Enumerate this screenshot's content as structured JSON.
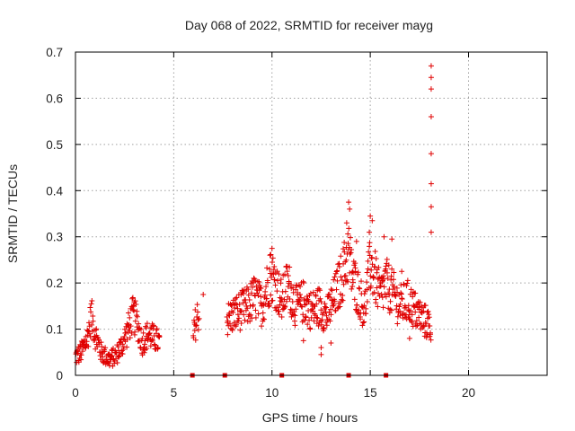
{
  "chart_data": {
    "type": "scatter",
    "title": "Day 068 of 2022, SRMTID for receiver mayg",
    "xlabel": "GPS time / hours",
    "ylabel": "SRMTID / TECUs",
    "xlim": [
      0,
      24
    ],
    "ylim": [
      0,
      0.7
    ],
    "xticks": [
      0,
      5,
      10,
      15,
      20
    ],
    "yticks": [
      0,
      0.1,
      0.2,
      0.3,
      0.4,
      0.5,
      0.6,
      0.7
    ],
    "xtick_labels": [
      "0",
      "5",
      "10",
      "15",
      "20"
    ],
    "ytick_labels": [
      "0",
      "0.1",
      "0.2",
      "0.3",
      "0.4",
      "0.5",
      "0.6",
      "0.7"
    ],
    "grid": true,
    "marker": "plus",
    "series": [
      {
        "name": "SRMTID",
        "color": "#e00000",
        "trend": [
          [
            0.0,
            0.04
          ],
          [
            0.3,
            0.05
          ],
          [
            0.6,
            0.08
          ],
          [
            0.8,
            0.13
          ],
          [
            1.0,
            0.09
          ],
          [
            1.3,
            0.05
          ],
          [
            1.7,
            0.035
          ],
          [
            2.0,
            0.04
          ],
          [
            2.3,
            0.06
          ],
          [
            2.6,
            0.09
          ],
          [
            2.9,
            0.13
          ],
          [
            3.1,
            0.12
          ],
          [
            3.4,
            0.07
          ],
          [
            3.7,
            0.09
          ],
          [
            4.0,
            0.08
          ],
          [
            4.3,
            0.07
          ],
          [
            6.0,
            0.08
          ],
          [
            6.1,
            0.11
          ],
          [
            6.3,
            0.14
          ],
          [
            7.7,
            0.12
          ],
          [
            8.0,
            0.13
          ],
          [
            8.4,
            0.14
          ],
          [
            8.8,
            0.15
          ],
          [
            9.1,
            0.17
          ],
          [
            9.5,
            0.15
          ],
          [
            9.8,
            0.2
          ],
          [
            10.0,
            0.22
          ],
          [
            10.5,
            0.16
          ],
          [
            10.8,
            0.2
          ],
          [
            11.2,
            0.15
          ],
          [
            11.6,
            0.16
          ],
          [
            12.0,
            0.14
          ],
          [
            12.4,
            0.15
          ],
          [
            12.8,
            0.13
          ],
          [
            13.2,
            0.17
          ],
          [
            13.6,
            0.22
          ],
          [
            13.9,
            0.27
          ],
          [
            14.1,
            0.21
          ],
          [
            14.4,
            0.18
          ],
          [
            14.7,
            0.14
          ],
          [
            15.0,
            0.24
          ],
          [
            15.2,
            0.22
          ],
          [
            15.5,
            0.17
          ],
          [
            15.8,
            0.2
          ],
          [
            16.1,
            0.18
          ],
          [
            16.5,
            0.15
          ],
          [
            16.9,
            0.16
          ],
          [
            17.3,
            0.14
          ],
          [
            17.7,
            0.12
          ],
          [
            18.0,
            0.11
          ],
          [
            18.1,
            0.1
          ]
        ],
        "tail_spike": [
          [
            18.1,
            0.67
          ],
          [
            18.1,
            0.645
          ],
          [
            18.1,
            0.62
          ],
          [
            18.1,
            0.56
          ],
          [
            18.1,
            0.48
          ],
          [
            18.1,
            0.415
          ],
          [
            18.1,
            0.365
          ],
          [
            18.1,
            0.31
          ]
        ],
        "outliers": [
          [
            13.9,
            0.375
          ],
          [
            13.95,
            0.36
          ],
          [
            13.8,
            0.33
          ],
          [
            15.0,
            0.345
          ],
          [
            15.1,
            0.335
          ],
          [
            14.95,
            0.31
          ],
          [
            10.0,
            0.275
          ],
          [
            9.9,
            0.26
          ],
          [
            16.1,
            0.295
          ],
          [
            15.7,
            0.3
          ],
          [
            14.3,
            0.29
          ],
          [
            16.6,
            0.225
          ],
          [
            12.5,
            0.045
          ],
          [
            12.5,
            0.06
          ],
          [
            11.6,
            0.075
          ],
          [
            17.0,
            0.08
          ],
          [
            6.5,
            0.175
          ],
          [
            4.2,
            0.06
          ],
          [
            13.0,
            0.07
          ]
        ]
      }
    ],
    "gap_markers_x": [
      5.95,
      7.6,
      10.5,
      13.9,
      15.8
    ],
    "gap_markers_y": [
      0,
      0,
      0,
      0,
      0
    ]
  }
}
